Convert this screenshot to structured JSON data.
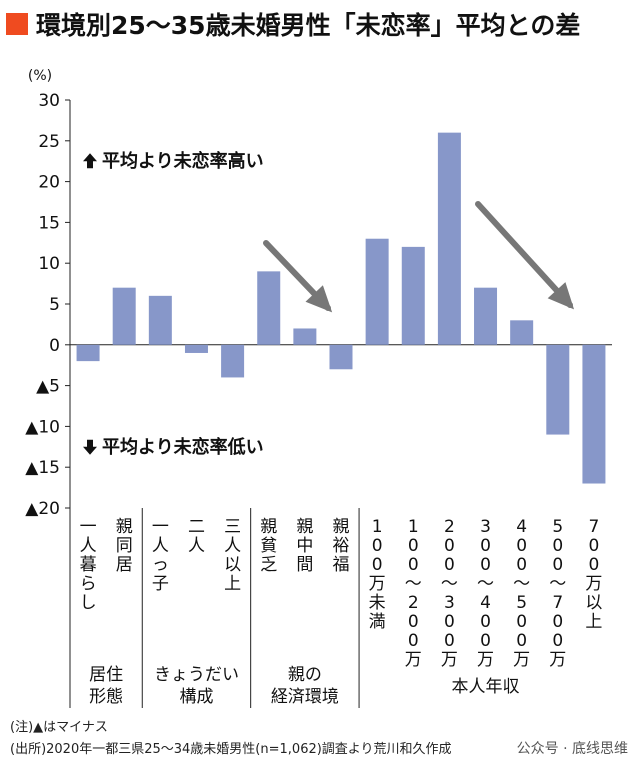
{
  "chart_data": {
    "type": "bar",
    "title": "環境別25〜35歳未婚男性「未恋率」平均との差",
    "ylabel": "(%)",
    "ylim": [
      -20,
      30
    ],
    "yticks": [
      {
        "value": 30,
        "label": "30"
      },
      {
        "value": 25,
        "label": "25"
      },
      {
        "value": 20,
        "label": "20"
      },
      {
        "value": 15,
        "label": "15"
      },
      {
        "value": 10,
        "label": "10"
      },
      {
        "value": 5,
        "label": "5"
      },
      {
        "value": 0,
        "label": "0"
      },
      {
        "value": -5,
        "label": "▲5"
      },
      {
        "value": -10,
        "label": "▲10"
      },
      {
        "value": -15,
        "label": "▲15"
      },
      {
        "value": -20,
        "label": "▲20"
      }
    ],
    "categories": [
      "一人暮らし",
      "親同居",
      "一人っ子",
      "二人",
      "三人以上",
      "親貧乏",
      "親中間",
      "親裕福",
      "100万未満",
      "100〜200万",
      "200〜300万",
      "300〜400万",
      "400〜500万",
      "500〜700万",
      "700万以上"
    ],
    "category_labels": [
      [
        "一",
        "人",
        "暮",
        "ら",
        "し"
      ],
      [
        "親",
        "同",
        "居"
      ],
      [
        "一",
        "人",
        "っ",
        "子"
      ],
      [
        "二",
        "人"
      ],
      [
        "三",
        "人",
        "以",
        "上"
      ],
      [
        "親",
        "貧",
        "乏"
      ],
      [
        "親",
        "中",
        "間"
      ],
      [
        "親",
        "裕",
        "福"
      ],
      [
        "1",
        "0",
        "0",
        "万",
        "未",
        "満"
      ],
      [
        "1",
        "0",
        "0",
        "〜",
        "2",
        "0",
        "0",
        "万"
      ],
      [
        "2",
        "0",
        "0",
        "〜",
        "3",
        "0",
        "0",
        "万"
      ],
      [
        "3",
        "0",
        "0",
        "〜",
        "4",
        "0",
        "0",
        "万"
      ],
      [
        "4",
        "0",
        "0",
        "〜",
        "5",
        "0",
        "0",
        "万"
      ],
      [
        "5",
        "0",
        "0",
        "〜",
        "7",
        "0",
        "0",
        "万"
      ],
      [
        "7",
        "0",
        "0",
        "万",
        "以",
        "上"
      ]
    ],
    "values": [
      -2,
      7,
      6,
      -1,
      -4,
      9,
      2,
      -3,
      13,
      12,
      26,
      7,
      3,
      -11,
      -17
    ],
    "groups": [
      {
        "lines": [
          "居住",
          "形態"
        ],
        "start": 0,
        "end": 1
      },
      {
        "lines": [
          "きょうだい",
          "構成"
        ],
        "start": 2,
        "end": 4
      },
      {
        "lines": [
          "親の",
          "経済環境"
        ],
        "start": 5,
        "end": 7
      },
      {
        "lines": [
          "本人年収"
        ],
        "start": 8,
        "end": 14
      }
    ],
    "annotations": {
      "high": "平均より未恋率高い",
      "low": "平均より未恋率低い"
    },
    "bar_color": "#8797c9",
    "arrow_color": "#777777",
    "title_accent": "#ef4b20"
  },
  "notes": {
    "note1": "(注)▲はマイナス",
    "note2": "(出所)2020年一都三県25〜34歳未婚男性(n=1,062)調査より荒川和久作成"
  },
  "watermark": "公众号 · 底线思维"
}
